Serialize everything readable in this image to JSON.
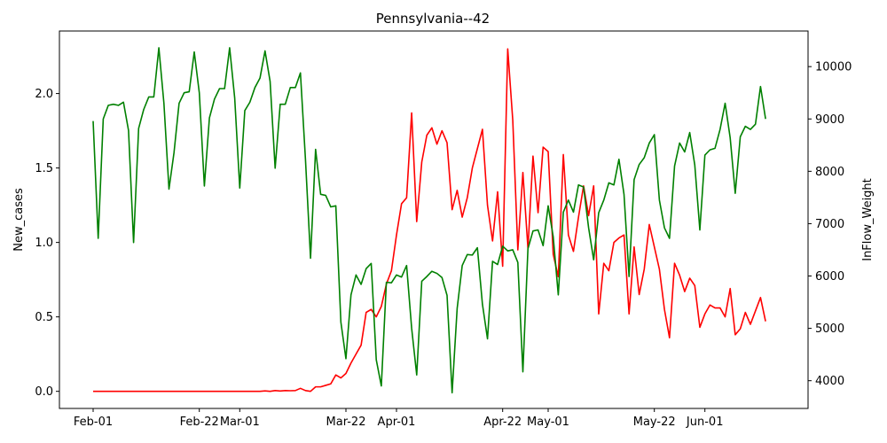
{
  "chart_data": {
    "type": "line",
    "title": "Pennsylvania--42",
    "ylabel_left": "New_cases",
    "ylabel_right": "InFlow_Weight",
    "x_tick_labels": [
      "Feb-01",
      "Feb-22",
      "Mar-01",
      "Mar-22",
      "Apr-01",
      "Apr-22",
      "May-01",
      "May-22",
      "Jun-01"
    ],
    "x_tick_dates": [
      "2020-02-01",
      "2020-02-22",
      "2020-03-01",
      "2020-03-22",
      "2020-04-01",
      "2020-04-22",
      "2020-05-01",
      "2020-05-22",
      "2020-06-01"
    ],
    "y_left_ticks": [
      0.0,
      0.5,
      1.0,
      1.5,
      2.0
    ],
    "y_left_tick_labels": [
      "0.0",
      "0.5",
      "1.0",
      "1.5",
      "2.0"
    ],
    "y_left_lim": [
      -0.115,
      2.42
    ],
    "y_right_ticks": [
      4000,
      5000,
      6000,
      7000,
      8000,
      9000,
      10000
    ],
    "y_right_tick_labels": [
      "4000",
      "5000",
      "6000",
      "7000",
      "8000",
      "9000",
      "10000"
    ],
    "y_right_lim": [
      3470,
      10680
    ],
    "grid": false,
    "legend": "none",
    "series": [
      {
        "axis": "left",
        "color": "#ff0000",
        "points": [
          [
            "2020-02-01",
            0.0
          ],
          [
            "2020-02-15",
            0.0
          ],
          [
            "2020-03-01",
            0.0
          ],
          [
            "2020-03-05",
            0.0
          ],
          [
            "2020-03-06",
            0.003
          ],
          [
            "2020-03-07",
            0.0
          ],
          [
            "2020-03-08",
            0.005
          ],
          [
            "2020-03-09",
            0.002
          ],
          [
            "2020-03-10",
            0.005
          ],
          [
            "2020-03-11",
            0.004
          ],
          [
            "2020-03-12",
            0.005
          ],
          [
            "2020-03-13",
            0.02
          ],
          [
            "2020-03-14",
            0.005
          ],
          [
            "2020-03-15",
            0.0
          ],
          [
            "2020-03-16",
            0.03
          ],
          [
            "2020-03-17",
            0.03
          ],
          [
            "2020-03-18",
            0.04
          ],
          [
            "2020-03-19",
            0.05
          ],
          [
            "2020-03-20",
            0.11
          ],
          [
            "2020-03-21",
            0.09
          ],
          [
            "2020-03-22",
            0.12
          ],
          [
            "2020-03-23",
            0.19
          ],
          [
            "2020-03-24",
            0.25
          ],
          [
            "2020-03-25",
            0.31
          ],
          [
            "2020-03-26",
            0.53
          ],
          [
            "2020-03-27",
            0.55
          ],
          [
            "2020-03-28",
            0.5
          ],
          [
            "2020-03-29",
            0.57
          ],
          [
            "2020-03-30",
            0.72
          ],
          [
            "2020-03-31",
            0.81
          ],
          [
            "2020-04-01",
            1.05
          ],
          [
            "2020-04-02",
            1.26
          ],
          [
            "2020-04-03",
            1.3
          ],
          [
            "2020-04-04",
            1.87
          ],
          [
            "2020-04-05",
            1.14
          ],
          [
            "2020-04-06",
            1.54
          ],
          [
            "2020-04-07",
            1.72
          ],
          [
            "2020-04-08",
            1.77
          ],
          [
            "2020-04-09",
            1.66
          ],
          [
            "2020-04-10",
            1.75
          ],
          [
            "2020-04-11",
            1.67
          ],
          [
            "2020-04-12",
            1.22
          ],
          [
            "2020-04-13",
            1.35
          ],
          [
            "2020-04-14",
            1.17
          ],
          [
            "2020-04-15",
            1.3
          ],
          [
            "2020-04-16",
            1.5
          ],
          [
            "2020-04-17",
            1.63
          ],
          [
            "2020-04-18",
            1.76
          ],
          [
            "2020-04-19",
            1.25
          ],
          [
            "2020-04-20",
            1.01
          ],
          [
            "2020-04-21",
            1.34
          ],
          [
            "2020-04-22",
            0.84
          ],
          [
            "2020-04-23",
            2.3
          ],
          [
            "2020-04-24",
            1.82
          ],
          [
            "2020-04-25",
            0.95
          ],
          [
            "2020-04-26",
            1.47
          ],
          [
            "2020-04-27",
            0.96
          ],
          [
            "2020-04-28",
            1.58
          ],
          [
            "2020-04-29",
            1.2
          ],
          [
            "2020-04-30",
            1.64
          ],
          [
            "2020-05-01",
            1.61
          ],
          [
            "2020-05-02",
            0.92
          ],
          [
            "2020-05-03",
            0.77
          ],
          [
            "2020-05-04",
            1.59
          ],
          [
            "2020-05-05",
            1.05
          ],
          [
            "2020-05-06",
            0.94
          ],
          [
            "2020-05-07",
            1.17
          ],
          [
            "2020-05-08",
            1.38
          ],
          [
            "2020-05-09",
            1.18
          ],
          [
            "2020-05-10",
            1.38
          ],
          [
            "2020-05-11",
            0.52
          ],
          [
            "2020-05-12",
            0.86
          ],
          [
            "2020-05-13",
            0.81
          ],
          [
            "2020-05-14",
            1.0
          ],
          [
            "2020-05-15",
            1.03
          ],
          [
            "2020-05-16",
            1.05
          ],
          [
            "2020-05-17",
            0.52
          ],
          [
            "2020-05-18",
            0.97
          ],
          [
            "2020-05-19",
            0.65
          ],
          [
            "2020-05-20",
            0.82
          ],
          [
            "2020-05-21",
            1.12
          ],
          [
            "2020-05-22",
            0.97
          ],
          [
            "2020-05-23",
            0.82
          ],
          [
            "2020-05-24",
            0.55
          ],
          [
            "2020-05-25",
            0.36
          ],
          [
            "2020-05-26",
            0.86
          ],
          [
            "2020-05-27",
            0.78
          ],
          [
            "2020-05-28",
            0.67
          ],
          [
            "2020-05-29",
            0.76
          ],
          [
            "2020-05-30",
            0.71
          ],
          [
            "2020-05-31",
            0.43
          ],
          [
            "2020-06-01",
            0.52
          ],
          [
            "2020-06-02",
            0.58
          ],
          [
            "2020-06-03",
            0.56
          ],
          [
            "2020-06-04",
            0.56
          ],
          [
            "2020-06-05",
            0.5
          ],
          [
            "2020-06-06",
            0.69
          ],
          [
            "2020-06-07",
            0.38
          ],
          [
            "2020-06-08",
            0.42
          ],
          [
            "2020-06-09",
            0.53
          ],
          [
            "2020-06-10",
            0.45
          ],
          [
            "2020-06-11",
            0.54
          ],
          [
            "2020-06-12",
            0.63
          ],
          [
            "2020-06-13",
            0.47
          ]
        ]
      },
      {
        "axis": "right",
        "color": "#008000",
        "points": [
          [
            "2020-02-01",
            8960
          ],
          [
            "2020-02-02",
            6720
          ],
          [
            "2020-02-03",
            9000
          ],
          [
            "2020-02-04",
            9260
          ],
          [
            "2020-02-05",
            9280
          ],
          [
            "2020-02-06",
            9260
          ],
          [
            "2020-02-07",
            9320
          ],
          [
            "2020-02-08",
            8780
          ],
          [
            "2020-02-09",
            6640
          ],
          [
            "2020-02-10",
            8820
          ],
          [
            "2020-02-11",
            9180
          ],
          [
            "2020-02-12",
            9420
          ],
          [
            "2020-02-13",
            9420
          ],
          [
            "2020-02-14",
            10360
          ],
          [
            "2020-02-15",
            9300
          ],
          [
            "2020-02-16",
            7660
          ],
          [
            "2020-02-17",
            8360
          ],
          [
            "2020-02-18",
            9300
          ],
          [
            "2020-02-19",
            9500
          ],
          [
            "2020-02-20",
            9520
          ],
          [
            "2020-02-21",
            10280
          ],
          [
            "2020-02-22",
            9500
          ],
          [
            "2020-02-23",
            7720
          ],
          [
            "2020-02-24",
            9020
          ],
          [
            "2020-02-25",
            9380
          ],
          [
            "2020-02-26",
            9580
          ],
          [
            "2020-02-27",
            9580
          ],
          [
            "2020-02-28",
            10360
          ],
          [
            "2020-02-29",
            9400
          ],
          [
            "2020-03-01",
            7680
          ],
          [
            "2020-03-02",
            9160
          ],
          [
            "2020-03-03",
            9320
          ],
          [
            "2020-03-04",
            9600
          ],
          [
            "2020-03-05",
            9780
          ],
          [
            "2020-03-06",
            10300
          ],
          [
            "2020-03-07",
            9720
          ],
          [
            "2020-03-08",
            8060
          ],
          [
            "2020-03-09",
            9280
          ],
          [
            "2020-03-10",
            9280
          ],
          [
            "2020-03-11",
            9600
          ],
          [
            "2020-03-12",
            9600
          ],
          [
            "2020-03-13",
            9880
          ],
          [
            "2020-03-14",
            8220
          ],
          [
            "2020-03-15",
            6340
          ],
          [
            "2020-03-16",
            8420
          ],
          [
            "2020-03-17",
            7560
          ],
          [
            "2020-03-18",
            7540
          ],
          [
            "2020-03-19",
            7320
          ],
          [
            "2020-03-20",
            7340
          ],
          [
            "2020-03-21",
            5120
          ],
          [
            "2020-03-22",
            4420
          ],
          [
            "2020-03-23",
            5640
          ],
          [
            "2020-03-24",
            6020
          ],
          [
            "2020-03-25",
            5840
          ],
          [
            "2020-03-26",
            6140
          ],
          [
            "2020-03-27",
            6240
          ],
          [
            "2020-03-28",
            4400
          ],
          [
            "2020-03-29",
            3900
          ],
          [
            "2020-03-30",
            5880
          ],
          [
            "2020-03-31",
            5870
          ],
          [
            "2020-04-01",
            6020
          ],
          [
            "2020-04-02",
            5980
          ],
          [
            "2020-04-03",
            6200
          ],
          [
            "2020-04-04",
            5000
          ],
          [
            "2020-04-05",
            4110
          ],
          [
            "2020-04-06",
            5900
          ],
          [
            "2020-04-07",
            5990
          ],
          [
            "2020-04-08",
            6090
          ],
          [
            "2020-04-09",
            6050
          ],
          [
            "2020-04-10",
            5970
          ],
          [
            "2020-04-11",
            5630
          ],
          [
            "2020-04-12",
            3770
          ],
          [
            "2020-04-13",
            5380
          ],
          [
            "2020-04-14",
            6200
          ],
          [
            "2020-04-15",
            6410
          ],
          [
            "2020-04-16",
            6400
          ],
          [
            "2020-04-17",
            6540
          ],
          [
            "2020-04-18",
            5460
          ],
          [
            "2020-04-19",
            4800
          ],
          [
            "2020-04-20",
            6280
          ],
          [
            "2020-04-21",
            6220
          ],
          [
            "2020-04-22",
            6570
          ],
          [
            "2020-04-23",
            6480
          ],
          [
            "2020-04-24",
            6500
          ],
          [
            "2020-04-25",
            6260
          ],
          [
            "2020-04-26",
            4170
          ],
          [
            "2020-04-27",
            6520
          ],
          [
            "2020-04-28",
            6860
          ],
          [
            "2020-04-29",
            6880
          ],
          [
            "2020-04-30",
            6580
          ],
          [
            "2020-05-01",
            7340
          ],
          [
            "2020-05-02",
            6750
          ],
          [
            "2020-05-03",
            5640
          ],
          [
            "2020-05-04",
            7220
          ],
          [
            "2020-05-05",
            7450
          ],
          [
            "2020-05-06",
            7220
          ],
          [
            "2020-05-07",
            7740
          ],
          [
            "2020-05-08",
            7700
          ],
          [
            "2020-05-09",
            6920
          ],
          [
            "2020-05-10",
            6310
          ],
          [
            "2020-05-11",
            7210
          ],
          [
            "2020-05-12",
            7450
          ],
          [
            "2020-05-13",
            7780
          ],
          [
            "2020-05-14",
            7740
          ],
          [
            "2020-05-15",
            8230
          ],
          [
            "2020-05-16",
            7560
          ],
          [
            "2020-05-17",
            5990
          ],
          [
            "2020-05-18",
            7840
          ],
          [
            "2020-05-19",
            8130
          ],
          [
            "2020-05-20",
            8260
          ],
          [
            "2020-05-21",
            8540
          ],
          [
            "2020-05-22",
            8700
          ],
          [
            "2020-05-23",
            7450
          ],
          [
            "2020-05-24",
            6920
          ],
          [
            "2020-05-25",
            6720
          ],
          [
            "2020-05-26",
            8100
          ],
          [
            "2020-05-27",
            8540
          ],
          [
            "2020-05-28",
            8370
          ],
          [
            "2020-05-29",
            8740
          ],
          [
            "2020-05-30",
            8120
          ],
          [
            "2020-05-31",
            6880
          ],
          [
            "2020-06-01",
            8310
          ],
          [
            "2020-06-02",
            8410
          ],
          [
            "2020-06-03",
            8440
          ],
          [
            "2020-06-04",
            8800
          ],
          [
            "2020-06-05",
            9300
          ],
          [
            "2020-06-06",
            8640
          ],
          [
            "2020-06-07",
            7580
          ],
          [
            "2020-06-08",
            8660
          ],
          [
            "2020-06-09",
            8860
          ],
          [
            "2020-06-10",
            8800
          ],
          [
            "2020-06-11",
            8900
          ],
          [
            "2020-06-12",
            9620
          ],
          [
            "2020-06-13",
            9000
          ]
        ]
      }
    ]
  }
}
